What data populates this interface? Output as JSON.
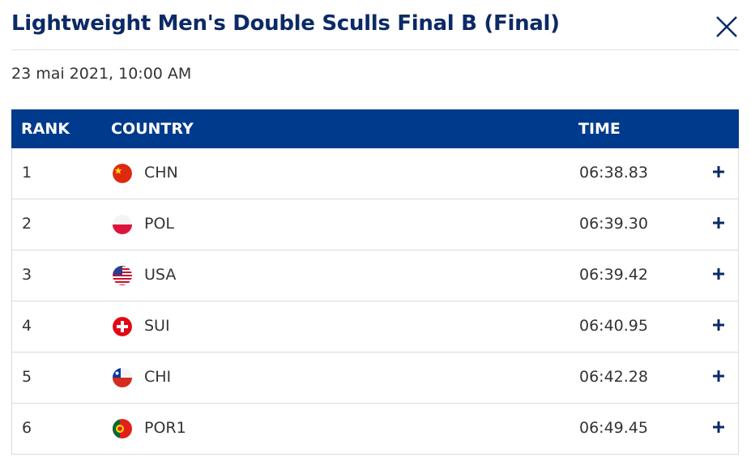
{
  "header": {
    "title": "Lightweight Men's Double Sculls Final B (Final)",
    "date": "23 mai 2021, 10:00 AM"
  },
  "table": {
    "columns": [
      "RANK",
      "COUNTRY",
      "TIME"
    ],
    "rows": [
      [
        "1",
        "CHN",
        "06:38.83"
      ],
      [
        "2",
        "POL",
        "06:39.30"
      ],
      [
        "3",
        "USA",
        "06:39.42"
      ],
      [
        "4",
        "SUI",
        "06:40.95"
      ],
      [
        "5",
        "CHI",
        "06:42.28"
      ],
      [
        "6",
        "POR1",
        "06:49.45"
      ]
    ]
  }
}
